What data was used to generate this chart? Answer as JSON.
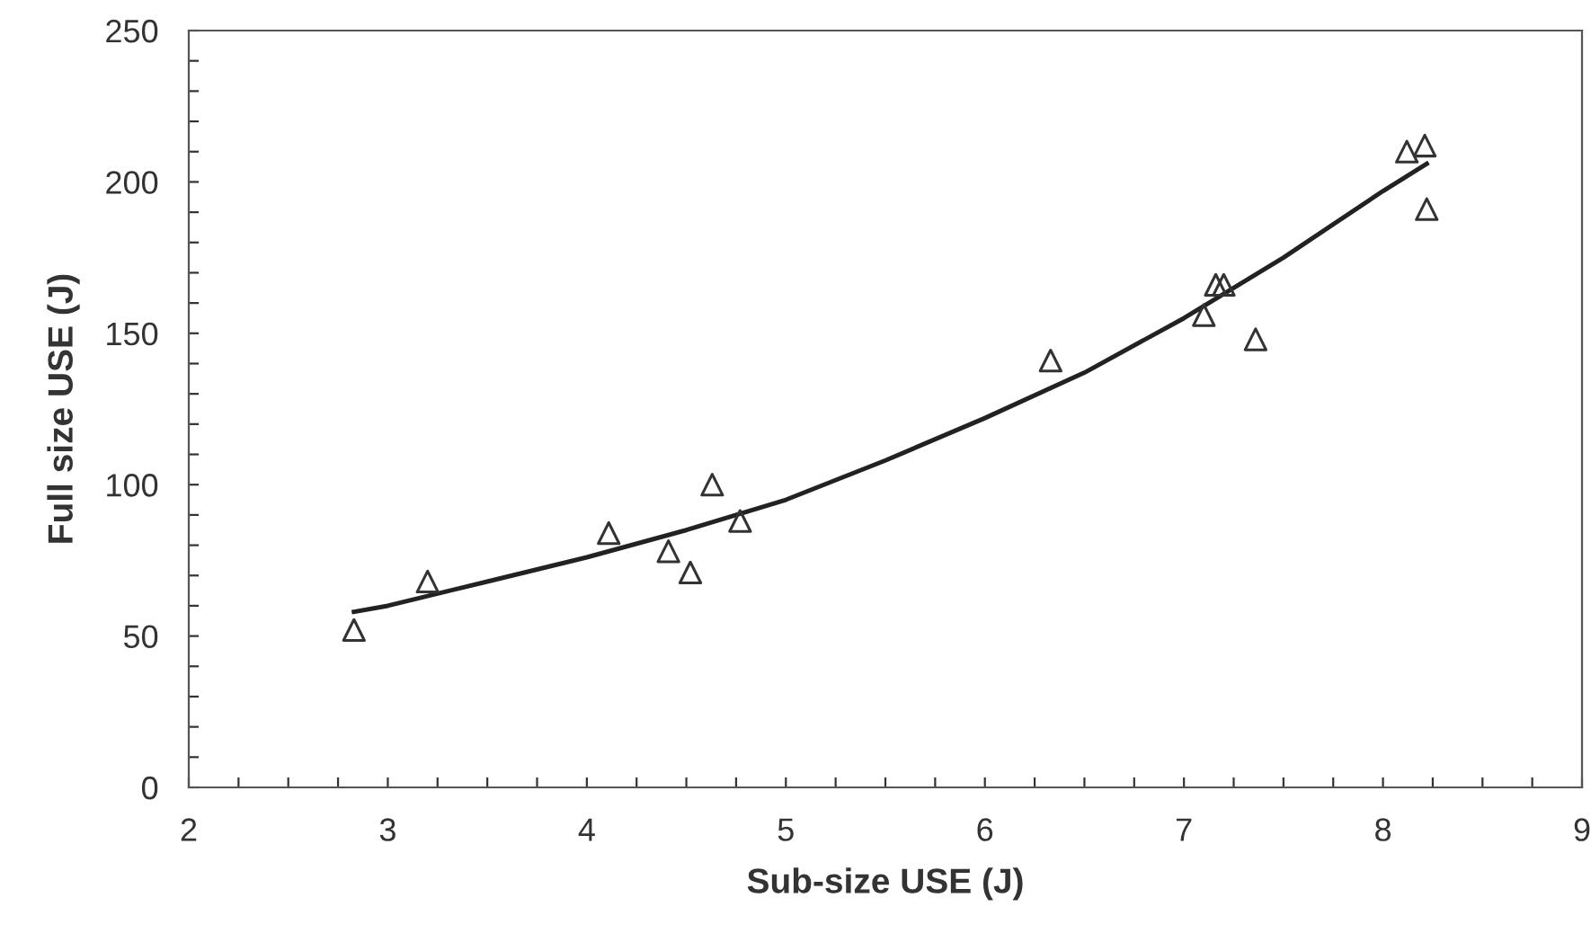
{
  "chart_data": {
    "type": "scatter",
    "xlabel": "Sub-size USE (J)",
    "ylabel": "Full size USE (J)",
    "xlim": [
      2,
      9
    ],
    "ylim": [
      0,
      250
    ],
    "xticks": [
      2,
      {
        "value": 2.25,
        "label": null
      },
      {
        "value": 2.5,
        "label": null
      },
      {
        "value": 2.75,
        "label": null
      },
      3,
      {
        "value": 3.25,
        "label": null
      },
      {
        "value": 3.5,
        "label": null
      },
      {
        "value": 3.75,
        "label": null
      },
      4,
      {
        "value": 4.25,
        "label": null
      },
      {
        "value": 4.5,
        "label": null
      },
      {
        "value": 4.75,
        "label": null
      },
      5,
      {
        "value": 5.25,
        "label": null
      },
      {
        "value": 5.5,
        "label": null
      },
      {
        "value": 5.75,
        "label": null
      },
      6,
      {
        "value": 6.25,
        "label": null
      },
      {
        "value": 6.5,
        "label": null
      },
      {
        "value": 6.75,
        "label": null
      },
      7,
      {
        "value": 7.25,
        "label": null
      },
      {
        "value": 7.5,
        "label": null
      },
      {
        "value": 7.75,
        "label": null
      },
      8,
      {
        "value": 8.25,
        "label": null
      },
      {
        "value": 8.5,
        "label": null
      },
      {
        "value": 8.75,
        "label": null
      },
      9
    ],
    "yticks": [
      0,
      {
        "value": 10,
        "label": null
      },
      {
        "value": 20,
        "label": null
      },
      {
        "value": 30,
        "label": null
      },
      {
        "value": 40,
        "label": null
      },
      50,
      {
        "value": 60,
        "label": null
      },
      {
        "value": 70,
        "label": null
      },
      {
        "value": 80,
        "label": null
      },
      {
        "value": 90,
        "label": null
      },
      100,
      {
        "value": 110,
        "label": null
      },
      {
        "value": 120,
        "label": null
      },
      {
        "value": 130,
        "label": null
      },
      {
        "value": 140,
        "label": null
      },
      150,
      {
        "value": 160,
        "label": null
      },
      {
        "value": 170,
        "label": null
      },
      {
        "value": 180,
        "label": null
      },
      {
        "value": 190,
        "label": null
      },
      200,
      {
        "value": 210,
        "label": null
      },
      {
        "value": 220,
        "label": null
      },
      {
        "value": 230,
        "label": null
      },
      {
        "value": 240,
        "label": null
      },
      250
    ],
    "grid": false,
    "legend": false,
    "series": [
      {
        "marker": "triangle",
        "color": "#333333",
        "x": [
          2.83,
          3.2,
          4.11,
          4.41,
          4.52,
          4.63,
          4.77,
          6.33,
          7.1,
          7.16,
          7.2,
          7.36,
          8.12,
          8.21,
          8.22
        ],
        "values": [
          52,
          68,
          84,
          78,
          71,
          100,
          88,
          141,
          156,
          166,
          166,
          148,
          210,
          212,
          191
        ]
      },
      {
        "type": "line",
        "marker": "none",
        "line_style": "solid",
        "color": "#222222",
        "x": [
          2.83,
          3.0,
          3.5,
          4.0,
          4.5,
          5.0,
          5.5,
          6.0,
          6.5,
          7.0,
          7.5,
          8.0,
          8.22
        ],
        "values": [
          58,
          60,
          68,
          76,
          85,
          95,
          108,
          122,
          137,
          155,
          175,
          197,
          206
        ]
      }
    ]
  }
}
